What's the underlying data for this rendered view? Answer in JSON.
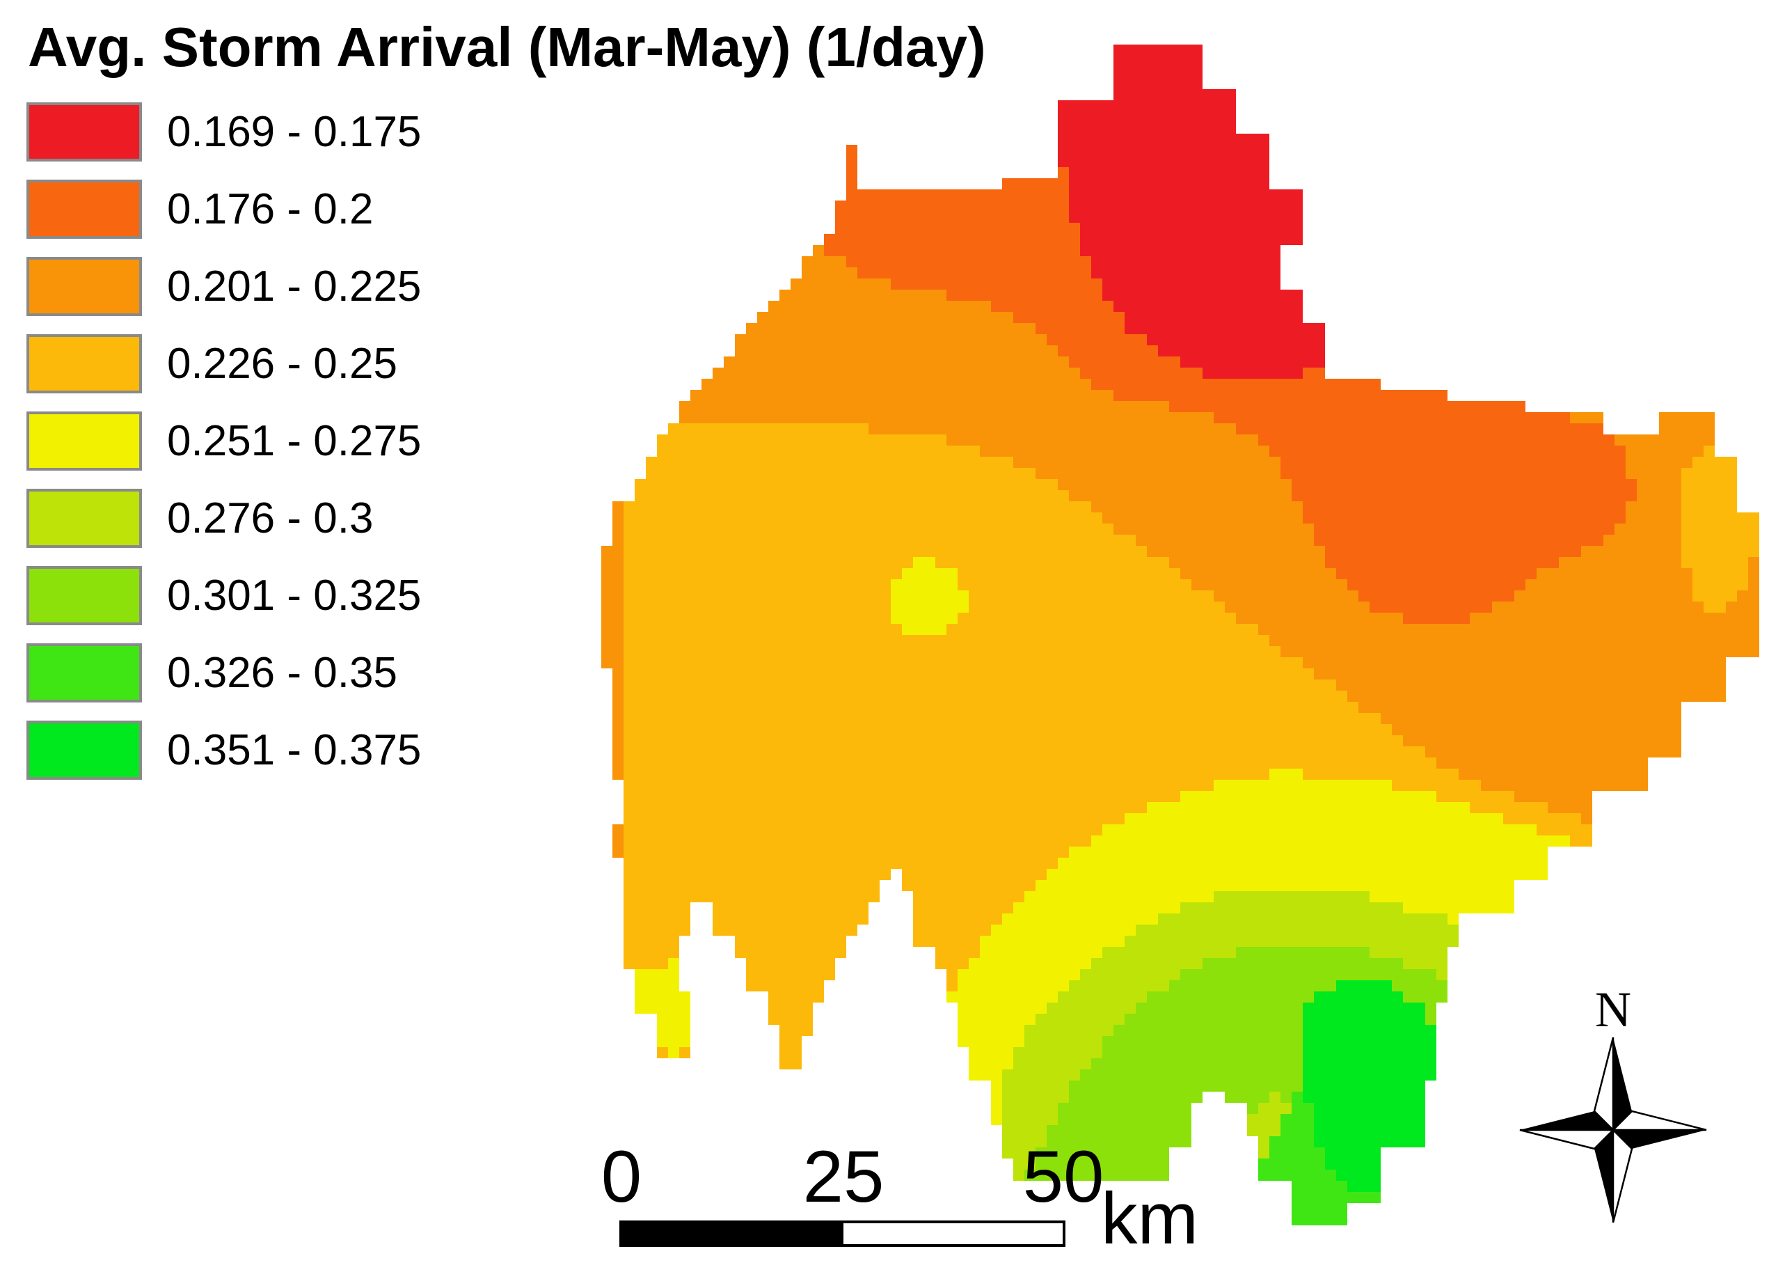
{
  "title": "Avg. Storm Arrival (Mar-May) (1/day)",
  "legend": {
    "items": [
      {
        "label": "0.169 - 0.175",
        "color": "#ED1C24"
      },
      {
        "label": "0.176 - 0.2",
        "color": "#F86710"
      },
      {
        "label": "0.201 - 0.225",
        "color": "#F99408"
      },
      {
        "label": "0.226 - 0.25",
        "color": "#FDB90A"
      },
      {
        "label": "0.251 - 0.275",
        "color": "#F2F200"
      },
      {
        "label": "0.276 - 0.3",
        "color": "#BDE309"
      },
      {
        "label": "0.301 - 0.325",
        "color": "#8CE10A"
      },
      {
        "label": "0.326 - 0.35",
        "color": "#3FE614"
      },
      {
        "label": "0.351 - 0.375",
        "color": "#00E81E"
      }
    ]
  },
  "scale_bar": {
    "tick_0": "0",
    "tick_25": "25",
    "tick_50": "50",
    "unit": "km"
  },
  "north_arrow": {
    "label": "N"
  },
  "map": {
    "background": "#FFFFFF",
    "type": "classified raster surface",
    "value_low_region": "northeast",
    "value_high_region": "south"
  }
}
